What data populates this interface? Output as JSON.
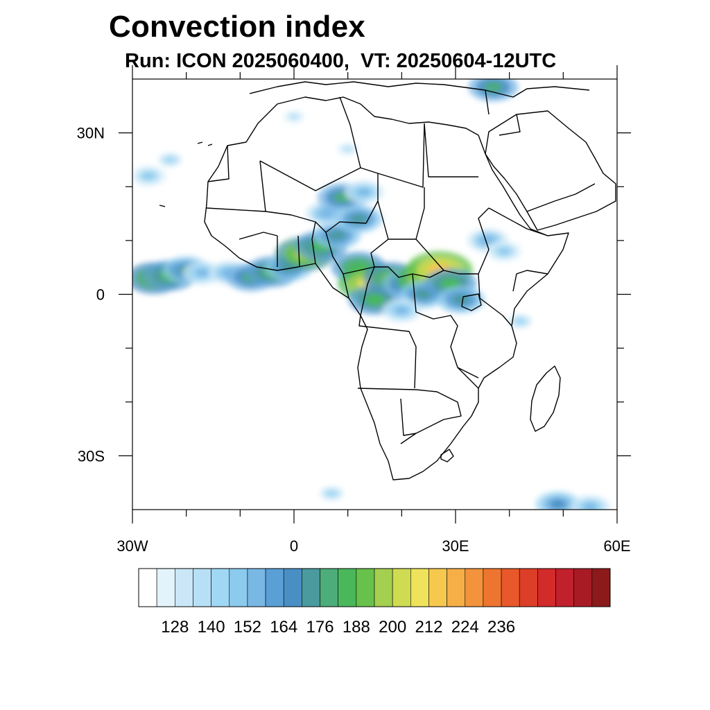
{
  "title": "Convection index",
  "subtitle": "Run: ICON 2025060400,  VT: 20250604-12UTC",
  "map": {
    "region": "Africa",
    "lon_range": [
      -30,
      60
    ],
    "lat_range": [
      -40,
      40
    ],
    "x_ticks": [
      {
        "lon": -30,
        "label": "30W"
      },
      {
        "lon": 0,
        "label": "0"
      },
      {
        "lon": 30,
        "label": "30E"
      },
      {
        "lon": 60,
        "label": "60E"
      }
    ],
    "y_ticks": [
      {
        "lat": 30,
        "label": "30N"
      },
      {
        "lat": 0,
        "label": "0"
      },
      {
        "lat": -30,
        "label": "30S"
      }
    ],
    "minor_lon": [
      -20,
      -10,
      10,
      20,
      40,
      50
    ],
    "minor_lat": [
      20,
      10,
      -10,
      -20
    ]
  },
  "convection_cells": [
    {
      "lon": -26,
      "lat": 3,
      "value": 182
    },
    {
      "lon": -23,
      "lat": 3.5,
      "value": 176
    },
    {
      "lon": -20,
      "lat": 4.5,
      "value": 164
    },
    {
      "lon": -17,
      "lat": 4,
      "value": 146
    },
    {
      "lon": -12,
      "lat": 4,
      "value": 150
    },
    {
      "lon": -8,
      "lat": 3.2,
      "value": 170
    },
    {
      "lon": -4,
      "lat": 4.2,
      "value": 178
    },
    {
      "lon": -1,
      "lat": 5,
      "value": 164
    },
    {
      "lon": 2,
      "lat": 7.5,
      "value": 192
    },
    {
      "lon": 5,
      "lat": 9,
      "value": 176
    },
    {
      "lon": 8,
      "lat": 11,
      "value": 164
    },
    {
      "lon": 6,
      "lat": 15,
      "value": 150
    },
    {
      "lon": 9,
      "lat": 18,
      "value": 170
    },
    {
      "lon": 13,
      "lat": 19,
      "value": 146
    },
    {
      "lon": 12,
      "lat": 5,
      "value": 180
    },
    {
      "lon": 14,
      "lat": 2,
      "value": 200
    },
    {
      "lon": 15,
      "lat": -1,
      "value": 176
    },
    {
      "lon": 18,
      "lat": 3,
      "value": 182
    },
    {
      "lon": 21,
      "lat": 2,
      "value": 170
    },
    {
      "lon": 25,
      "lat": 3,
      "value": 200
    },
    {
      "lon": 27,
      "lat": 4.5,
      "value": 208
    },
    {
      "lon": 24,
      "lat": 0,
      "value": 164
    },
    {
      "lon": 29,
      "lat": 2,
      "value": 176
    },
    {
      "lon": 31,
      "lat": -1,
      "value": 164
    },
    {
      "lon": 20,
      "lat": -3,
      "value": 146
    },
    {
      "lon": 36,
      "lat": 10,
      "value": 150
    },
    {
      "lon": 39,
      "lat": 8,
      "value": 140
    },
    {
      "lon": 42,
      "lat": -5,
      "value": 134
    },
    {
      "lon": -27,
      "lat": 22,
      "value": 140
    },
    {
      "lon": -23,
      "lat": 25,
      "value": 134
    },
    {
      "lon": 37,
      "lat": 38.5,
      "value": 170
    },
    {
      "lon": 49,
      "lat": -39,
      "value": 158
    },
    {
      "lon": 55,
      "lat": -39.5,
      "value": 146
    },
    {
      "lon": 7,
      "lat": -37,
      "value": 134
    },
    {
      "lon": 0,
      "lat": 33,
      "value": 128
    },
    {
      "lon": 10,
      "lat": 27,
      "value": 128
    },
    {
      "lon": 12,
      "lat": 14,
      "value": 164
    }
  ],
  "colorbar": {
    "colors": [
      "#ffffff",
      "#e3f3fb",
      "#cbe7f7",
      "#b7e0f6",
      "#9fd7f4",
      "#8ccaee",
      "#79b7e5",
      "#5a9fd6",
      "#4a8fc4",
      "#4a9a9e",
      "#4cac7a",
      "#4ab85a",
      "#67c14a",
      "#a4cf4f",
      "#cfdc52",
      "#eee35a",
      "#f7c84e",
      "#f6ae47",
      "#f3933b",
      "#ee7530",
      "#e8582a",
      "#dd3e27",
      "#d32a2a",
      "#c0212c",
      "#a81b25",
      "#8c1a1a"
    ],
    "labels": [
      "128",
      "140",
      "152",
      "164",
      "176",
      "188",
      "200",
      "212",
      "224",
      "236"
    ],
    "min": 116,
    "step": 6,
    "label_start_index": 2,
    "label_every": 2
  }
}
